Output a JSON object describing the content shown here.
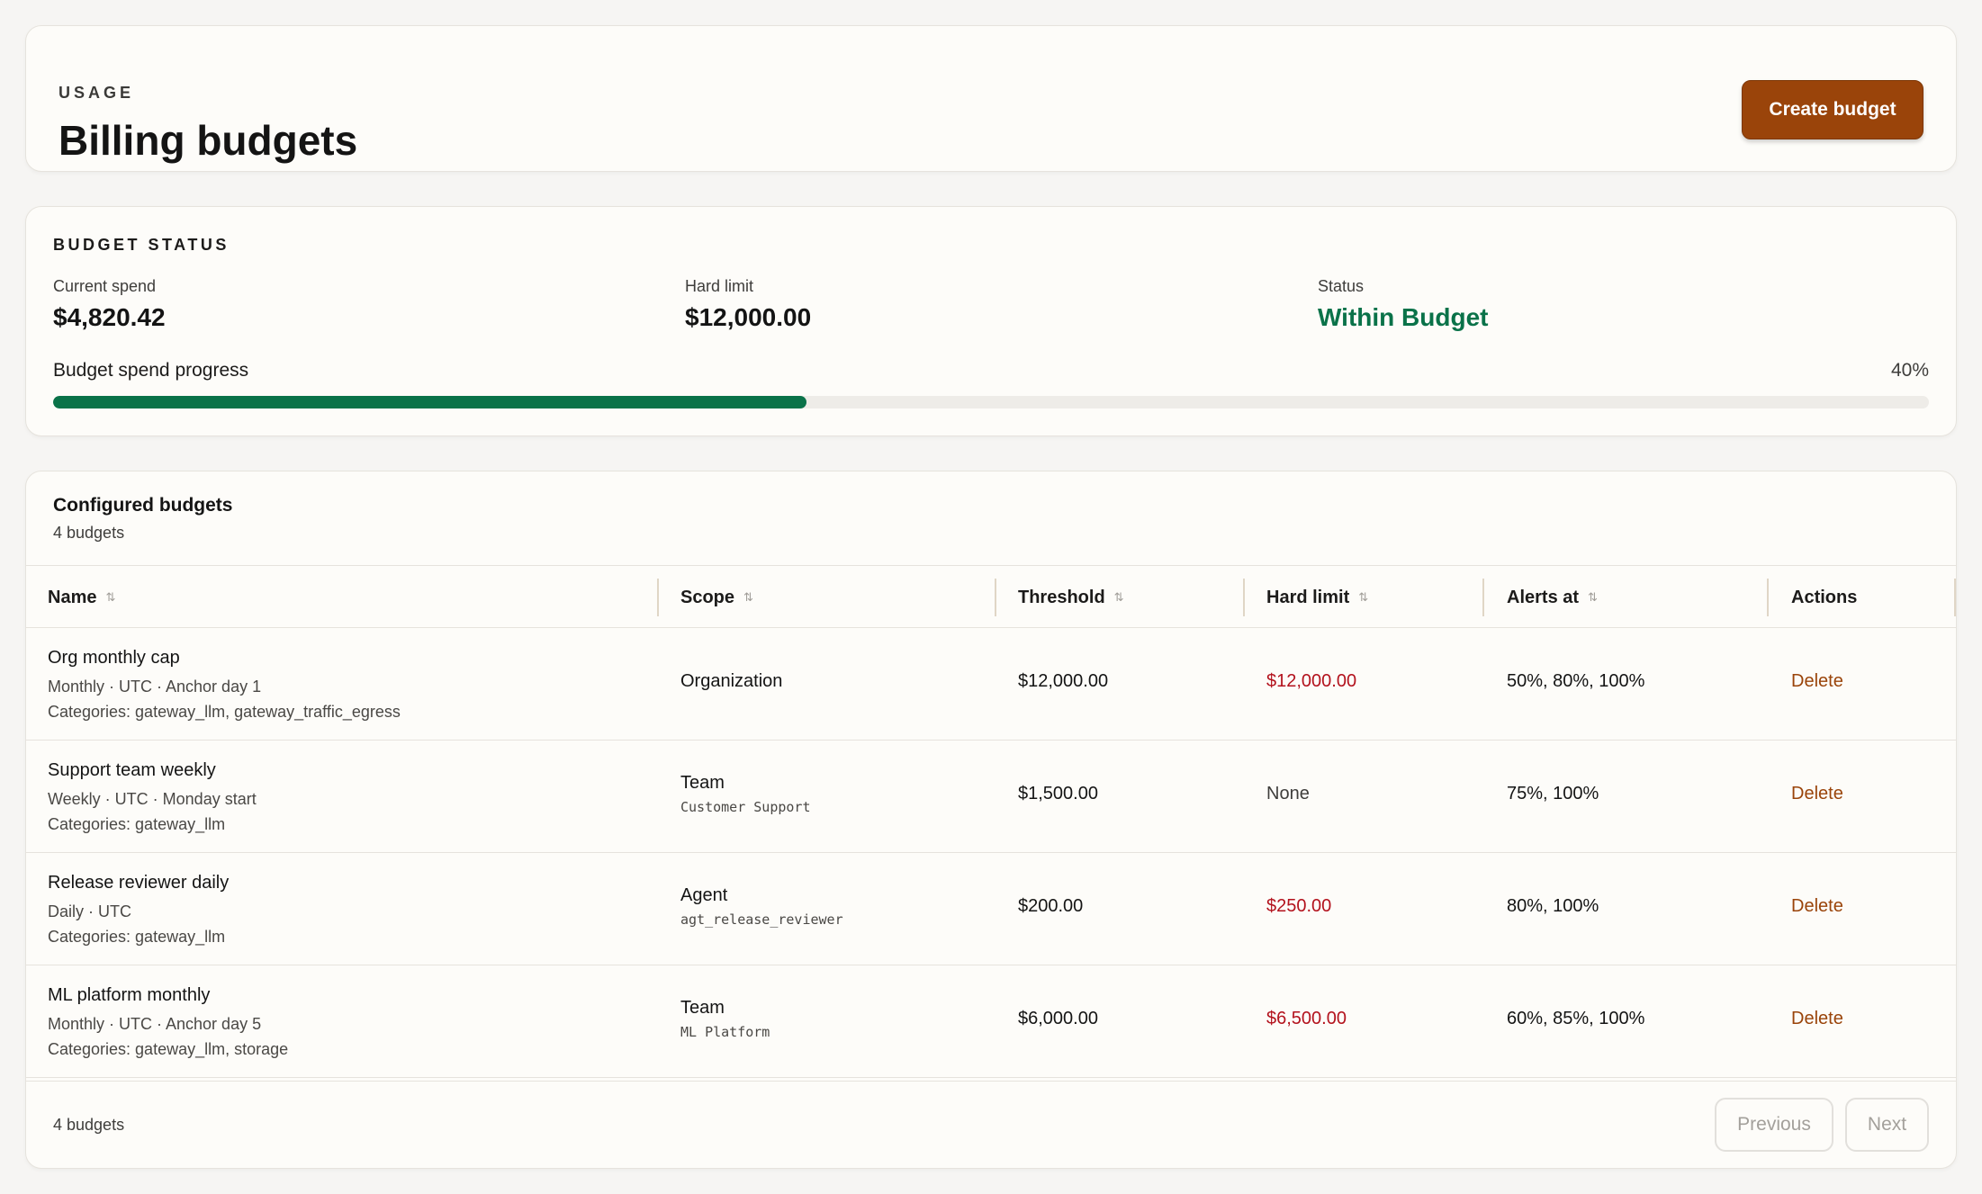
{
  "header": {
    "eyebrow": "USAGE",
    "title": "Billing budgets",
    "create_button": "Create budget"
  },
  "status": {
    "section_title": "BUDGET STATUS",
    "current_spend_label": "Current spend",
    "current_spend_value": "$4,820.42",
    "hard_limit_label": "Hard limit",
    "hard_limit_value": "$12,000.00",
    "status_label": "Status",
    "status_value": "Within Budget",
    "progress_label": "Budget spend progress",
    "progress_pct_text": "40%",
    "progress_fraction": 0.4017,
    "colors": {
      "ok": "#0a7249",
      "danger": "#b3121d",
      "accent": "#9a440a"
    }
  },
  "table": {
    "title": "Configured budgets",
    "subtitle": "4 budgets",
    "columns": [
      "Name",
      "Scope",
      "Threshold",
      "Hard limit",
      "Alerts at",
      "Actions"
    ],
    "rows": [
      {
        "name": "Org monthly cap",
        "meta1": "Monthly · UTC · Anchor day 1",
        "meta2": "Categories: gateway_llm, gateway_traffic_egress",
        "scope": "Organization",
        "scope_detail": "",
        "threshold": "$12,000.00",
        "hard_limit": "$12,000.00",
        "alerts": "50%, 80%, 100%",
        "action": "Delete"
      },
      {
        "name": "Support team weekly",
        "meta1": "Weekly · UTC · Monday start",
        "meta2": "Categories: gateway_llm",
        "scope": "Team",
        "scope_detail": "Customer Support",
        "threshold": "$1,500.00",
        "hard_limit": "None",
        "alerts": "75%, 100%",
        "action": "Delete"
      },
      {
        "name": "Release reviewer daily",
        "meta1": "Daily · UTC",
        "meta2": "Categories: gateway_llm",
        "scope": "Agent",
        "scope_detail": "agt_release_reviewer",
        "threshold": "$200.00",
        "hard_limit": "$250.00",
        "alerts": "80%, 100%",
        "action": "Delete"
      },
      {
        "name": "ML platform monthly",
        "meta1": "Monthly · UTC · Anchor day 5",
        "meta2": "Categories: gateway_llm, storage",
        "scope": "Team",
        "scope_detail": "ML Platform",
        "threshold": "$6,000.00",
        "hard_limit": "$6,500.00",
        "alerts": "60%, 85%, 100%",
        "action": "Delete"
      }
    ],
    "footer_count": "4 budgets",
    "prev_label": "Previous",
    "next_label": "Next"
  }
}
